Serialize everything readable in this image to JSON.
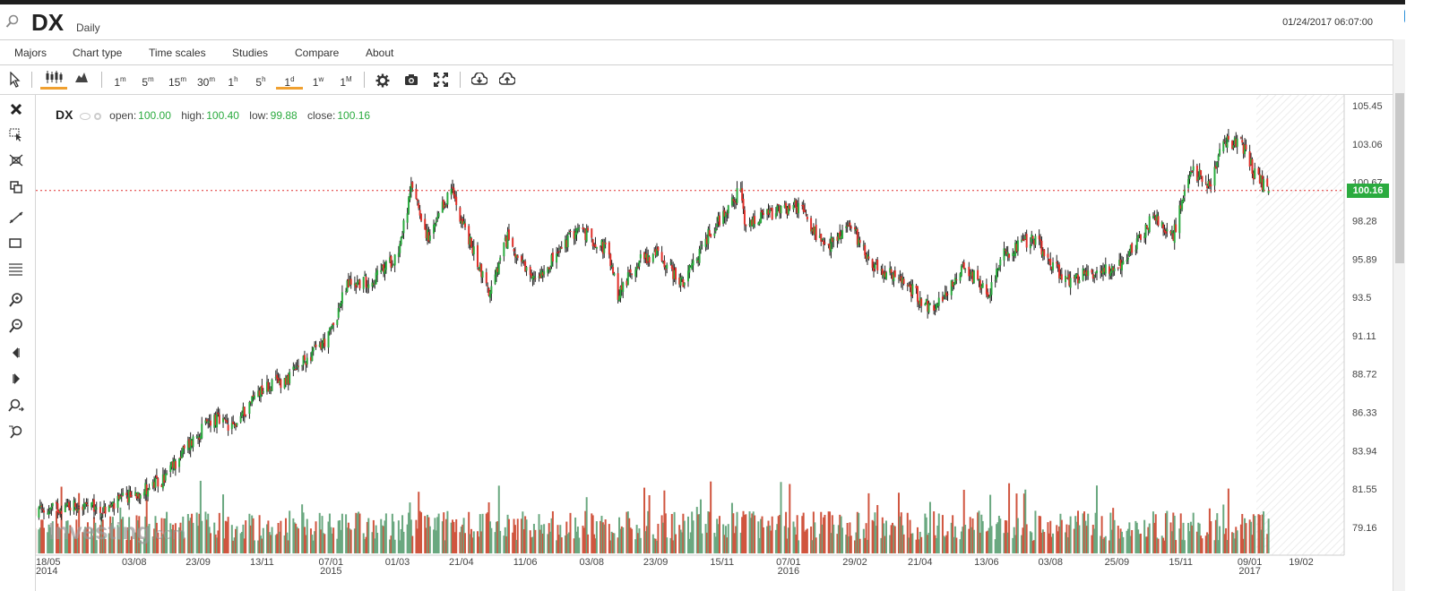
{
  "header": {
    "symbol": "DX",
    "period": "Daily",
    "datetime": "01/24/2017 06:07:00"
  },
  "menu": [
    "Majors",
    "Chart type",
    "Time scales",
    "Studies",
    "Compare",
    "About"
  ],
  "toolbar": {
    "intervals": [
      {
        "num": "1",
        "unit": "m"
      },
      {
        "num": "5",
        "unit": "m"
      },
      {
        "num": "15",
        "unit": "m"
      },
      {
        "num": "30",
        "unit": "m"
      },
      {
        "num": "1",
        "unit": "h"
      },
      {
        "num": "5",
        "unit": "h"
      },
      {
        "num": "1",
        "unit": "d"
      },
      {
        "num": "1",
        "unit": "w"
      },
      {
        "num": "1",
        "unit": "M"
      }
    ],
    "active_interval": "1d"
  },
  "legend": {
    "symbol": "DX",
    "open_label": "open:",
    "open": "100.00",
    "high_label": "high:",
    "high": "100.40",
    "low_label": "low:",
    "low": "99.88",
    "close_label": "close:",
    "close": "100.16"
  },
  "watermark": {
    "main": "Investing",
    "suffix": ".com"
  },
  "colors": {
    "up": "#2bab3f",
    "down": "#e0302a",
    "vol_up": "#6aa880",
    "vol_down": "#d0553f",
    "last_line": "#e03030"
  },
  "chart_data": {
    "type": "candlestick",
    "title": "DX",
    "period": "Daily",
    "last_price": 100.16,
    "ylim": [
      78,
      106
    ],
    "y_ticks": [
      105.45,
      103.06,
      100.67,
      98.28,
      95.89,
      93.5,
      91.11,
      88.72,
      86.33,
      83.94,
      81.55,
      79.16
    ],
    "x_ticks": [
      {
        "label": "18/05",
        "sub": "2014"
      },
      {
        "label": "03/08",
        "sub": ""
      },
      {
        "label": "23/09",
        "sub": ""
      },
      {
        "label": "13/11",
        "sub": ""
      },
      {
        "label": "07/01",
        "sub": "2015"
      },
      {
        "label": "01/03",
        "sub": ""
      },
      {
        "label": "21/04",
        "sub": ""
      },
      {
        "label": "11/06",
        "sub": ""
      },
      {
        "label": "03/08",
        "sub": ""
      },
      {
        "label": "23/09",
        "sub": ""
      },
      {
        "label": "15/11",
        "sub": ""
      },
      {
        "label": "07/01",
        "sub": "2016"
      },
      {
        "label": "29/02",
        "sub": ""
      },
      {
        "label": "21/04",
        "sub": ""
      },
      {
        "label": "13/06",
        "sub": ""
      },
      {
        "label": "03/08",
        "sub": ""
      },
      {
        "label": "25/09",
        "sub": ""
      },
      {
        "label": "15/11",
        "sub": ""
      },
      {
        "label": "09/01",
        "sub": "2017"
      },
      {
        "label": "19/02",
        "sub": ""
      }
    ],
    "price_path": [
      {
        "date": "2014-05-12",
        "close": 80.0
      },
      {
        "date": "2014-06-15",
        "close": 80.6
      },
      {
        "date": "2014-07-10",
        "close": 80.2
      },
      {
        "date": "2014-08-01",
        "close": 81.2
      },
      {
        "date": "2014-08-25",
        "close": 82.0
      },
      {
        "date": "2014-09-15",
        "close": 84.3
      },
      {
        "date": "2014-10-05",
        "close": 86.0
      },
      {
        "date": "2014-10-20",
        "close": 85.3
      },
      {
        "date": "2014-11-10",
        "close": 87.7
      },
      {
        "date": "2014-12-05",
        "close": 88.5
      },
      {
        "date": "2014-12-20",
        "close": 89.8
      },
      {
        "date": "2015-01-05",
        "close": 91.0
      },
      {
        "date": "2015-01-20",
        "close": 94.3
      },
      {
        "date": "2015-02-10",
        "close": 94.6
      },
      {
        "date": "2015-03-01",
        "close": 96.2
      },
      {
        "date": "2015-03-13",
        "close": 100.5
      },
      {
        "date": "2015-03-26",
        "close": 97.0
      },
      {
        "date": "2015-04-13",
        "close": 100.3
      },
      {
        "date": "2015-04-25",
        "close": 97.5
      },
      {
        "date": "2015-05-14",
        "close": 93.7
      },
      {
        "date": "2015-05-28",
        "close": 97.3
      },
      {
        "date": "2015-06-15",
        "close": 94.5
      },
      {
        "date": "2015-07-05",
        "close": 96.0
      },
      {
        "date": "2015-07-22",
        "close": 97.8
      },
      {
        "date": "2015-08-15",
        "close": 96.5
      },
      {
        "date": "2015-08-24",
        "close": 93.7
      },
      {
        "date": "2015-09-10",
        "close": 95.9
      },
      {
        "date": "2015-09-25",
        "close": 96.2
      },
      {
        "date": "2015-10-15",
        "close": 94.3
      },
      {
        "date": "2015-11-05",
        "close": 97.5
      },
      {
        "date": "2015-11-30",
        "close": 100.2
      },
      {
        "date": "2015-12-03",
        "close": 97.8
      },
      {
        "date": "2015-12-20",
        "close": 98.6
      },
      {
        "date": "2016-01-15",
        "close": 99.2
      },
      {
        "date": "2016-02-05",
        "close": 96.5
      },
      {
        "date": "2016-02-25",
        "close": 98.0
      },
      {
        "date": "2016-03-15",
        "close": 95.5
      },
      {
        "date": "2016-04-10",
        "close": 94.3
      },
      {
        "date": "2016-05-02",
        "close": 92.6
      },
      {
        "date": "2016-05-25",
        "close": 95.5
      },
      {
        "date": "2016-06-15",
        "close": 93.8
      },
      {
        "date": "2016-06-24",
        "close": 96.0
      },
      {
        "date": "2016-07-20",
        "close": 97.2
      },
      {
        "date": "2016-08-15",
        "close": 94.5
      },
      {
        "date": "2016-09-10",
        "close": 95.2
      },
      {
        "date": "2016-09-30",
        "close": 95.6
      },
      {
        "date": "2016-10-25",
        "close": 98.7
      },
      {
        "date": "2016-11-08",
        "close": 97.2
      },
      {
        "date": "2016-11-24",
        "close": 101.5
      },
      {
        "date": "2016-12-08",
        "close": 100.5
      },
      {
        "date": "2016-12-20",
        "close": 103.2
      },
      {
        "date": "2017-01-03",
        "close": 103.1
      },
      {
        "date": "2017-01-12",
        "close": 101.3
      },
      {
        "date": "2017-01-24",
        "close": 100.16
      }
    ]
  }
}
